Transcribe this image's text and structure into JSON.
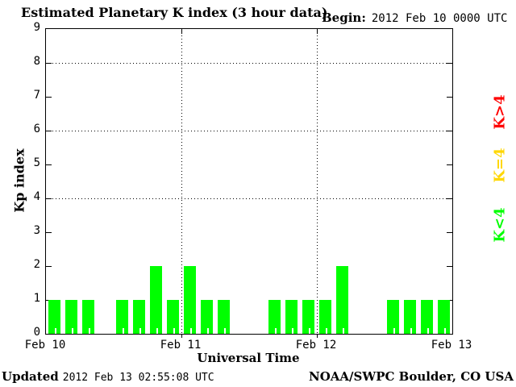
{
  "title": "Estimated Planetary K index (3 hour data)",
  "begin": {
    "label": "Begin:",
    "value": "2012 Feb 10 0000 UTC"
  },
  "y_axis": {
    "label": "Kp index",
    "ticks": [
      "0",
      "1",
      "2",
      "3",
      "4",
      "5",
      "6",
      "7",
      "8",
      "9"
    ],
    "gridlines": [
      4,
      6,
      8
    ]
  },
  "x_axis": {
    "label": "Universal Time",
    "ticks": [
      "Feb 10",
      "Feb 11",
      "Feb 12",
      "Feb 13"
    ]
  },
  "legend": [
    {
      "label": "K>4",
      "color": "#ff0000"
    },
    {
      "label": "K=4",
      "color": "#ffd700"
    },
    {
      "label": "K<4",
      "color": "#00ff00"
    }
  ],
  "footer": {
    "updated_label": "Updated",
    "updated_value": "2012 Feb 13 02:55:08 UTC",
    "credit": "NOAA/SWPC Boulder, CO USA"
  },
  "chart_data": {
    "type": "bar",
    "title": "Estimated Planetary K index (3 hour data)",
    "xlabel": "Universal Time",
    "ylabel": "Kp index",
    "ylim": [
      0,
      9
    ],
    "grid_dotted_at": [
      4,
      6,
      8
    ],
    "interval_hours": 3,
    "bar_color": "#00ff00",
    "days": [
      {
        "date": "2012 Feb 10",
        "values": [
          1,
          1,
          1,
          0,
          1,
          1,
          2,
          1
        ]
      },
      {
        "date": "2012 Feb 11",
        "values": [
          2,
          1,
          1,
          0,
          0,
          1,
          1,
          1
        ]
      },
      {
        "date": "2012 Feb 12",
        "values": [
          1,
          2,
          0,
          0,
          1,
          1,
          1,
          1
        ]
      }
    ],
    "note": "0 means no bar plotted for that 3-hour interval"
  }
}
